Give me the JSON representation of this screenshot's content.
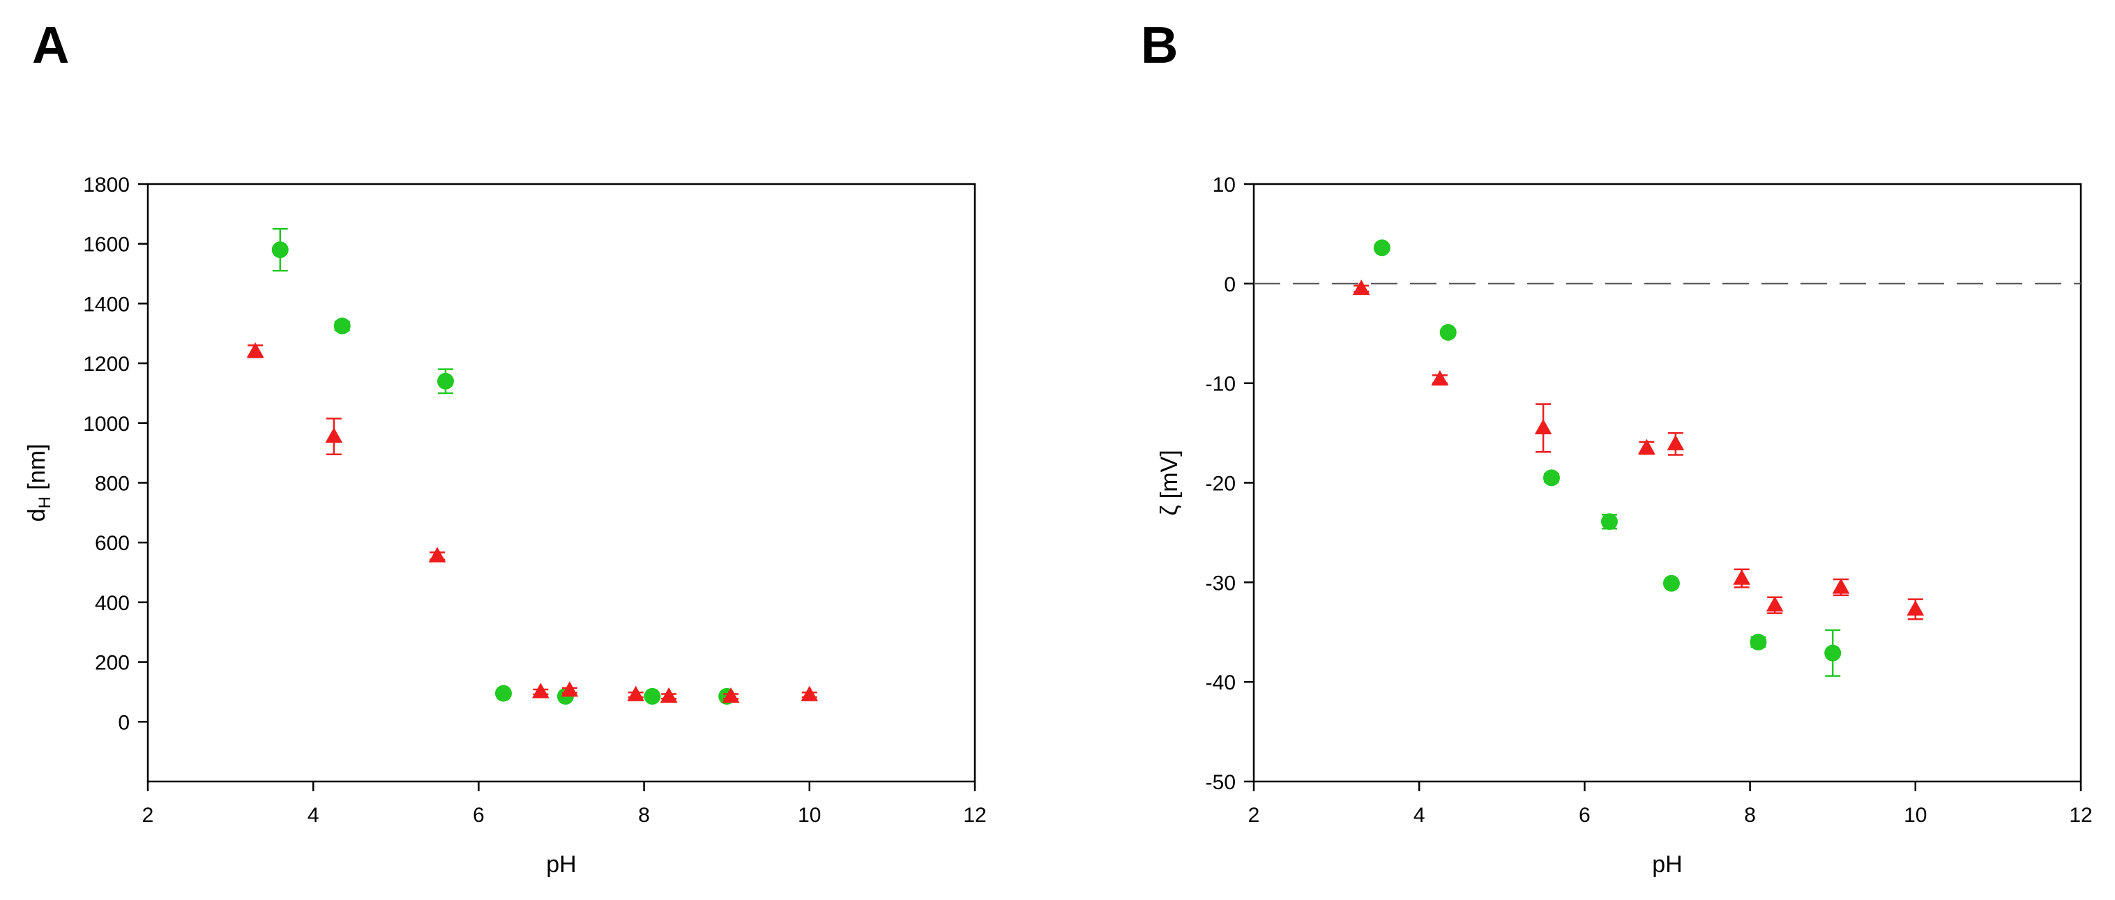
{
  "colors": {
    "series_green": "#22c922",
    "series_red": "#ee1c1c",
    "axis": "#000000",
    "zero_line": "#555555"
  },
  "chart_data": [
    {
      "panel_label": "A",
      "type": "scatter",
      "xlabel": "pH",
      "ylabel_main": "d",
      "ylabel_sub": "H",
      "ylabel_rest": " [nm]",
      "xlim": [
        2,
        12
      ],
      "ylim": [
        -200,
        1800
      ],
      "xticks": [
        2,
        4,
        6,
        8,
        10,
        12
      ],
      "yticks": [
        0,
        200,
        400,
        600,
        800,
        1000,
        1200,
        1400,
        1600,
        1800
      ],
      "zero_line": false,
      "grid": false,
      "series": [
        {
          "marker": "circle",
          "color": "#22c922",
          "points": [
            {
              "x": 3.6,
              "y": 1580,
              "err": 70
            },
            {
              "x": 4.35,
              "y": 1325,
              "err": 15
            },
            {
              "x": 5.6,
              "y": 1140,
              "err": 40
            },
            {
              "x": 6.3,
              "y": 95,
              "err": 10
            },
            {
              "x": 7.05,
              "y": 85,
              "err": 10
            },
            {
              "x": 8.1,
              "y": 85,
              "err": 8
            },
            {
              "x": 9.0,
              "y": 85,
              "err": 8
            }
          ]
        },
        {
          "marker": "triangle",
          "color": "#ee1c1c",
          "points": [
            {
              "x": 3.3,
              "y": 1240,
              "err": 20
            },
            {
              "x": 4.25,
              "y": 955,
              "err": 60
            },
            {
              "x": 5.5,
              "y": 555,
              "err": 12
            },
            {
              "x": 6.75,
              "y": 100,
              "err": 8
            },
            {
              "x": 7.1,
              "y": 105,
              "err": 8
            },
            {
              "x": 7.9,
              "y": 90,
              "err": 8
            },
            {
              "x": 8.3,
              "y": 85,
              "err": 8
            },
            {
              "x": 9.05,
              "y": 85,
              "err": 8
            },
            {
              "x": 10.0,
              "y": 90,
              "err": 8
            }
          ]
        }
      ]
    },
    {
      "panel_label": "B",
      "type": "scatter",
      "xlabel": "pH",
      "ylabel_main": "ζ [mV]",
      "ylabel_sub": "",
      "ylabel_rest": "",
      "xlim": [
        2,
        12
      ],
      "ylim": [
        -50,
        10
      ],
      "xticks": [
        2,
        4,
        6,
        8,
        10,
        12
      ],
      "yticks": [
        -50,
        -40,
        -30,
        -20,
        -10,
        0,
        10
      ],
      "zero_line": true,
      "grid": false,
      "series": [
        {
          "marker": "circle",
          "color": "#22c922",
          "points": [
            {
              "x": 3.55,
              "y": 3.6,
              "err": 0.3
            },
            {
              "x": 4.35,
              "y": -4.9,
              "err": 0.3
            },
            {
              "x": 5.6,
              "y": -19.5,
              "err": 0.4
            },
            {
              "x": 6.3,
              "y": -23.9,
              "err": 0.7
            },
            {
              "x": 7.05,
              "y": -30.1,
              "err": 0.3
            },
            {
              "x": 8.1,
              "y": -36.0,
              "err": 0.5
            },
            {
              "x": 9.0,
              "y": -37.1,
              "err": 2.3
            }
          ]
        },
        {
          "marker": "triangle",
          "color": "#ee1c1c",
          "points": [
            {
              "x": 3.3,
              "y": -0.5,
              "err": 0.3
            },
            {
              "x": 4.25,
              "y": -9.6,
              "err": 0.4
            },
            {
              "x": 5.5,
              "y": -14.5,
              "err": 2.4
            },
            {
              "x": 6.75,
              "y": -16.5,
              "err": 0.6
            },
            {
              "x": 7.1,
              "y": -16.1,
              "err": 1.1
            },
            {
              "x": 7.9,
              "y": -29.6,
              "err": 0.9
            },
            {
              "x": 8.3,
              "y": -32.3,
              "err": 0.8
            },
            {
              "x": 9.1,
              "y": -30.5,
              "err": 0.8
            },
            {
              "x": 10.0,
              "y": -32.7,
              "err": 1.0
            }
          ]
        }
      ]
    }
  ]
}
